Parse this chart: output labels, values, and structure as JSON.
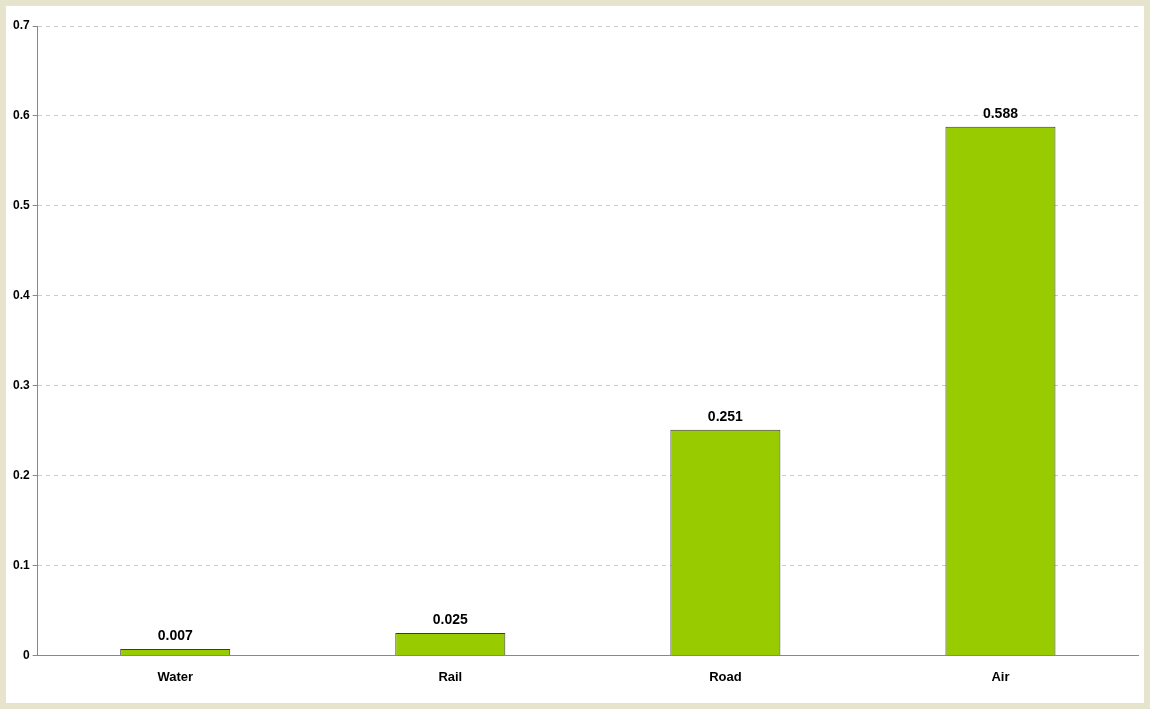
{
  "chart_data": {
    "type": "bar",
    "categories": [
      "Water",
      "Rail",
      "Road",
      "Air"
    ],
    "values": [
      0.007,
      0.025,
      0.251,
      0.588
    ],
    "color": "#99cc00",
    "ylim": [
      0,
      0.7
    ],
    "yticks": [
      0,
      0.1,
      0.2,
      0.3,
      0.4,
      0.5,
      0.6,
      0.7
    ],
    "grid": "y",
    "legend": false,
    "data_labels": true
  }
}
